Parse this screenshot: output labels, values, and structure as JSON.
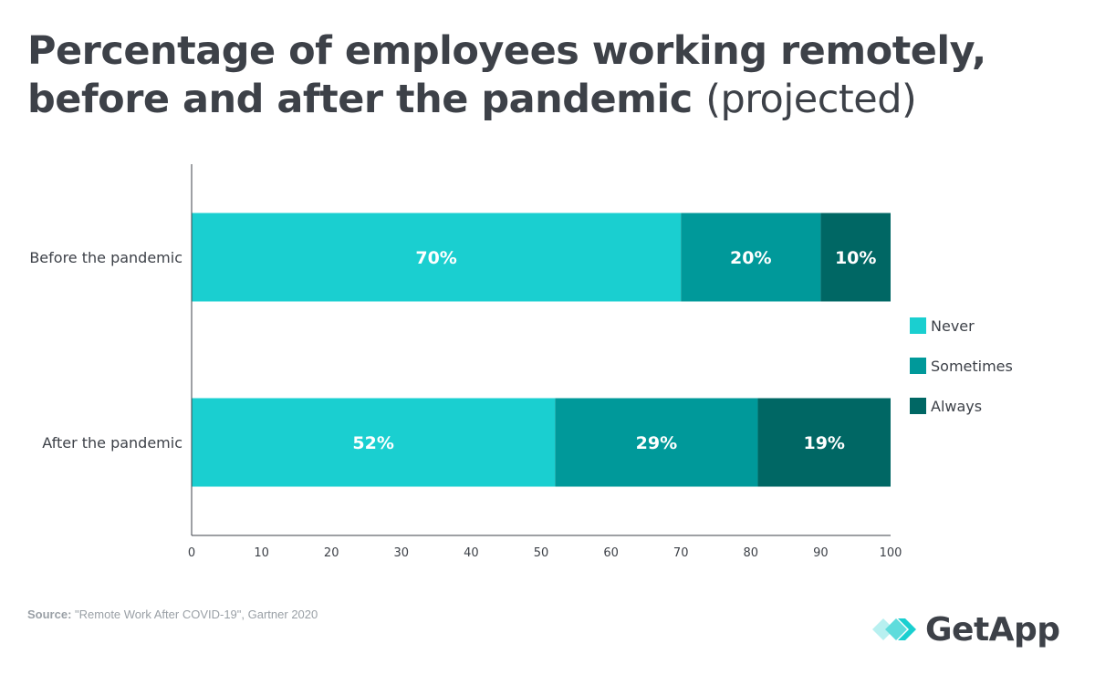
{
  "title": {
    "main": "Percentage of employees working remotely, before and after the pandemic",
    "suffix": "(projected)"
  },
  "chart_data": {
    "type": "bar",
    "orientation": "horizontal",
    "stacked": true,
    "categories": [
      "Before the pandemic",
      "After the pandemic"
    ],
    "series": [
      {
        "name": "Never",
        "values": [
          70,
          52
        ],
        "labels": [
          "70%",
          "52%"
        ],
        "color": "#1acfd0"
      },
      {
        "name": "Sometimes",
        "values": [
          20,
          29
        ],
        "labels": [
          "20%",
          "29%"
        ],
        "color": "#00999a"
      },
      {
        "name": "Always",
        "values": [
          10,
          19
        ],
        "labels": [
          "10%",
          "19%"
        ],
        "color": "#006764"
      }
    ],
    "xlim": [
      0,
      100
    ],
    "xticks": [
      "0",
      "10",
      "20",
      "30",
      "40",
      "50",
      "60",
      "70",
      "80",
      "90",
      "100"
    ],
    "xlabel": "",
    "ylabel": "",
    "grid": false,
    "legend_position": "right"
  },
  "source": {
    "label": "Source:",
    "text": "\"Remote Work After COVID-19\", Gartner 2020"
  },
  "logo": {
    "text": "GetApp",
    "colors": [
      "#b8f0f0",
      "#5fdcdc",
      "#1acfd0"
    ]
  }
}
